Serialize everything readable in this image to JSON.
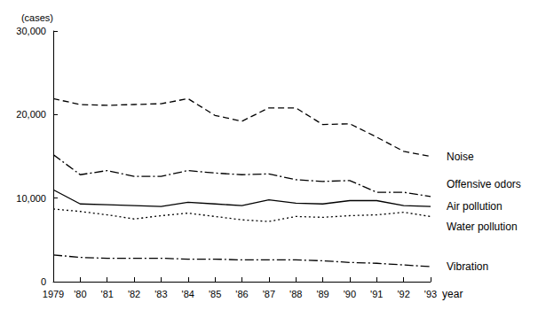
{
  "chart_data": {
    "type": "line",
    "y_label": "(cases)",
    "x_label": "year",
    "categories": [
      "1979",
      "'80",
      "'81",
      "'82",
      "'83",
      "'84",
      "'85",
      "'86",
      "'87",
      "'88",
      "'89",
      "'90",
      "'91",
      "'92",
      "'93"
    ],
    "ylim": [
      0,
      30000
    ],
    "yticks": [
      0,
      {
        "value": 10000,
        "label": "10,000"
      },
      {
        "value": 20000,
        "label": "20,000"
      },
      {
        "value": 30000,
        "label": "30,000"
      }
    ],
    "grid": false,
    "series": [
      {
        "name": "Noise",
        "color": "#000000",
        "line_style": "dashed",
        "values": [
          21900,
          21200,
          21100,
          21200,
          21300,
          21900,
          19900,
          19200,
          20800,
          20800,
          18800,
          18900,
          17300,
          15600,
          15000
        ]
      },
      {
        "name": "Offensive odors",
        "color": "#000000",
        "line_style": "dashdot",
        "values": [
          15200,
          12800,
          13300,
          12600,
          12600,
          13300,
          13000,
          12800,
          12900,
          12200,
          12000,
          12100,
          10700,
          10700,
          10200
        ]
      },
      {
        "name": "Air pollution",
        "color": "#000000",
        "line_style": "solid",
        "values": [
          11000,
          9300,
          9200,
          9100,
          9000,
          9500,
          9300,
          9100,
          9800,
          9400,
          9300,
          9700,
          9700,
          9100,
          9000
        ]
      },
      {
        "name": "Water pollution",
        "color": "#000000",
        "line_style": "dotted",
        "values": [
          8700,
          8400,
          8000,
          7500,
          7900,
          8200,
          7800,
          7400,
          7200,
          7800,
          7700,
          7900,
          8000,
          8300,
          7800
        ]
      },
      {
        "name": "Vibration",
        "color": "#000000",
        "line_style": "dashdot",
        "values": [
          3200,
          2900,
          2800,
          2800,
          2800,
          2700,
          2700,
          2600,
          2600,
          2600,
          2500,
          2300,
          2200,
          2000,
          1800
        ]
      }
    ]
  }
}
